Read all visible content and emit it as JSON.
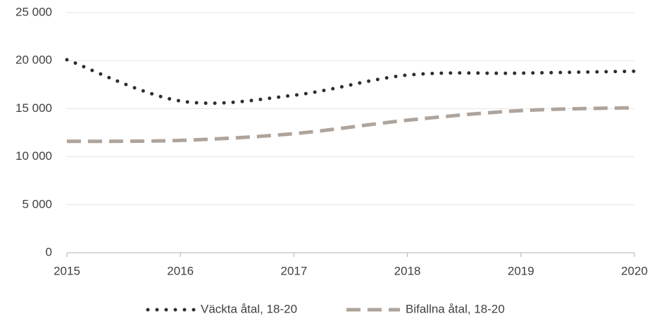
{
  "chart_data": {
    "type": "line",
    "x": [
      2015,
      2016,
      2017,
      2018,
      2019,
      2020
    ],
    "series": [
      {
        "name": "Väckta åtal, 18-20",
        "color": "#2e2e2e",
        "style": "dotted",
        "values": [
          20100,
          15800,
          16400,
          18500,
          18700,
          18900
        ]
      },
      {
        "name": "Bifallna åtal, 18-20",
        "color": "#aea49c",
        "style": "dashed",
        "values": [
          11600,
          11700,
          12400,
          13800,
          14800,
          15100
        ]
      }
    ],
    "xlim": [
      2015,
      2020
    ],
    "xticks": [
      2015,
      2016,
      2017,
      2018,
      2019,
      2020
    ],
    "ylim": [
      0,
      25000
    ],
    "yticks": [
      0,
      {
        "value": 5000,
        "label": "5 000"
      },
      {
        "value": 10000,
        "label": "10 000"
      },
      {
        "value": 15000,
        "label": "15 000"
      },
      {
        "value": 20000,
        "label": "20 000"
      },
      {
        "value": 25000,
        "label": "25 000"
      }
    ],
    "grid": true,
    "legend": "bottom"
  }
}
